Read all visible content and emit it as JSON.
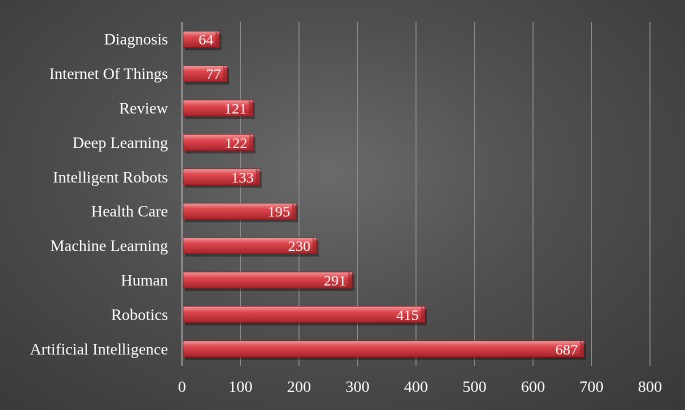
{
  "chart_data": {
    "type": "bar",
    "orientation": "horizontal",
    "categories": [
      "Diagnosis",
      "Internet Of Things",
      "Review",
      "Deep Learning",
      "Intelligent Robots",
      "Health Care",
      "Machine Learning",
      "Human",
      "Robotics",
      "Artificial Intelligence"
    ],
    "values": [
      64,
      77,
      121,
      122,
      133,
      195,
      230,
      291,
      415,
      687
    ],
    "xlim": [
      0,
      800
    ],
    "xticks": [
      0,
      100,
      200,
      300,
      400,
      500,
      600,
      700,
      800
    ],
    "title": "",
    "xlabel": "",
    "ylabel": "",
    "grid": "vertical",
    "data_labels": "inside-end",
    "colors": {
      "bar": "#d9434a",
      "bar_light": "#f08a8d",
      "bar_dark": "#8f1f24",
      "text": "#ffffff",
      "grid": "#8a8a8a",
      "background": "#4f4f4f"
    }
  }
}
